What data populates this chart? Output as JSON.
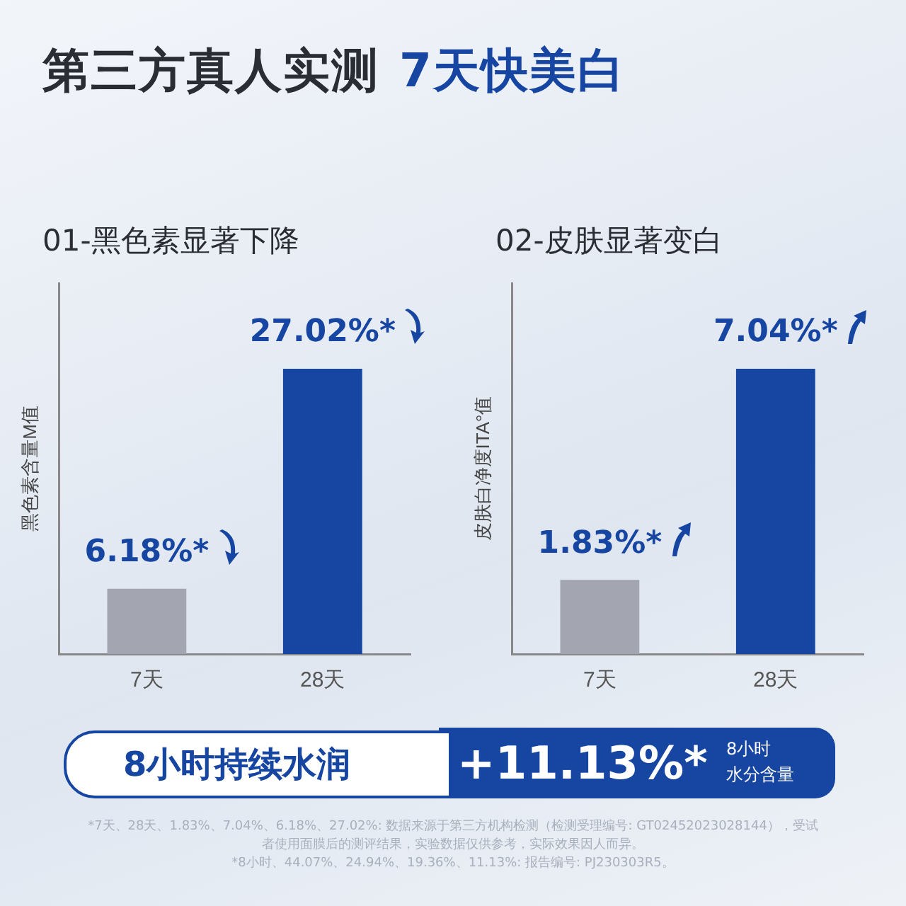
{
  "chart_data": [
    {
      "type": "other",
      "title": "第三方真人实测 7天快美白"
    },
    {
      "type": "bar",
      "title": "01-黑色素显著下降",
      "ylabel": "黑色素含量M值",
      "categories": [
        "7天",
        "28天"
      ],
      "values": [
        6.18,
        27.02
      ],
      "colors": [
        "#a3a5b0",
        "#1746a2"
      ],
      "value_labels": [
        "6.18%*",
        "27.02%*"
      ],
      "grid": false,
      "legend": false
    },
    {
      "type": "bar",
      "title": "02-皮肤显著变白",
      "ylabel": "皮肤白净度ITA°值",
      "categories": [
        "7天",
        "28天"
      ],
      "values": [
        1.83,
        7.04
      ],
      "colors": [
        "#a3a5b0",
        "#1746a2"
      ],
      "value_labels": [
        "1.83%*",
        "7.04%*"
      ],
      "grid": false,
      "legend": false
    },
    {
      "type": "other",
      "annotations": [
        "8小时持续水润",
        "+11.13%*",
        "8小时",
        "水分含量",
        "*7天、28天、1.83%、7.04%、6.18%、27.02%: 数据来源于第三方机构检测（检测受理编号: GT02452023028144），受试者使用面膜后的测评结果，实验数据仅供参考，实际效果因人而异。",
        "*8小时、44.07%、24.94%、19.36%、11.13%: 报告编号: PJ230303R5。"
      ]
    }
  ]
}
